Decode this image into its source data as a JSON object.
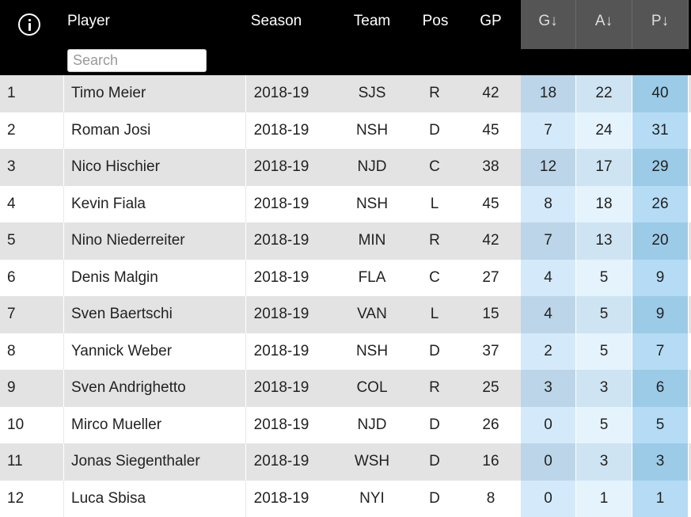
{
  "header": {
    "info_icon": "info-circle-icon",
    "columns": {
      "player": "Player",
      "season": "Season",
      "team": "Team",
      "pos": "Pos",
      "gp": "GP",
      "g": "G↓",
      "a": "A↓",
      "p": "P↓"
    },
    "search_placeholder": "Search"
  },
  "colors": {
    "header_bg": "#000000",
    "sort_header_bg": "#555555",
    "row_alt_bg": "#e3e3e3",
    "stat_highlight": "#b5dcf4"
  },
  "rows": [
    {
      "rank": "1",
      "player": "Timo Meier",
      "season": "2018-19",
      "team": "SJS",
      "pos": "R",
      "gp": "42",
      "g": "18",
      "a": "22",
      "p": "40"
    },
    {
      "rank": "2",
      "player": "Roman Josi",
      "season": "2018-19",
      "team": "NSH",
      "pos": "D",
      "gp": "45",
      "g": "7",
      "a": "24",
      "p": "31"
    },
    {
      "rank": "3",
      "player": "Nico Hischier",
      "season": "2018-19",
      "team": "NJD",
      "pos": "C",
      "gp": "38",
      "g": "12",
      "a": "17",
      "p": "29"
    },
    {
      "rank": "4",
      "player": "Kevin Fiala",
      "season": "2018-19",
      "team": "NSH",
      "pos": "L",
      "gp": "45",
      "g": "8",
      "a": "18",
      "p": "26"
    },
    {
      "rank": "5",
      "player": "Nino Niederreiter",
      "season": "2018-19",
      "team": "MIN",
      "pos": "R",
      "gp": "42",
      "g": "7",
      "a": "13",
      "p": "20"
    },
    {
      "rank": "6",
      "player": "Denis Malgin",
      "season": "2018-19",
      "team": "FLA",
      "pos": "C",
      "gp": "27",
      "g": "4",
      "a": "5",
      "p": "9"
    },
    {
      "rank": "7",
      "player": "Sven Baertschi",
      "season": "2018-19",
      "team": "VAN",
      "pos": "L",
      "gp": "15",
      "g": "4",
      "a": "5",
      "p": "9"
    },
    {
      "rank": "8",
      "player": "Yannick Weber",
      "season": "2018-19",
      "team": "NSH",
      "pos": "D",
      "gp": "37",
      "g": "2",
      "a": "5",
      "p": "7"
    },
    {
      "rank": "9",
      "player": "Sven Andrighetto",
      "season": "2018-19",
      "team": "COL",
      "pos": "R",
      "gp": "25",
      "g": "3",
      "a": "3",
      "p": "6"
    },
    {
      "rank": "10",
      "player": "Mirco Mueller",
      "season": "2018-19",
      "team": "NJD",
      "pos": "D",
      "gp": "26",
      "g": "0",
      "a": "5",
      "p": "5"
    },
    {
      "rank": "11",
      "player": "Jonas Siegenthaler",
      "season": "2018-19",
      "team": "WSH",
      "pos": "D",
      "gp": "16",
      "g": "0",
      "a": "3",
      "p": "3"
    },
    {
      "rank": "12",
      "player": "Luca Sbisa",
      "season": "2018-19",
      "team": "NYI",
      "pos": "D",
      "gp": "8",
      "g": "0",
      "a": "1",
      "p": "1"
    }
  ]
}
